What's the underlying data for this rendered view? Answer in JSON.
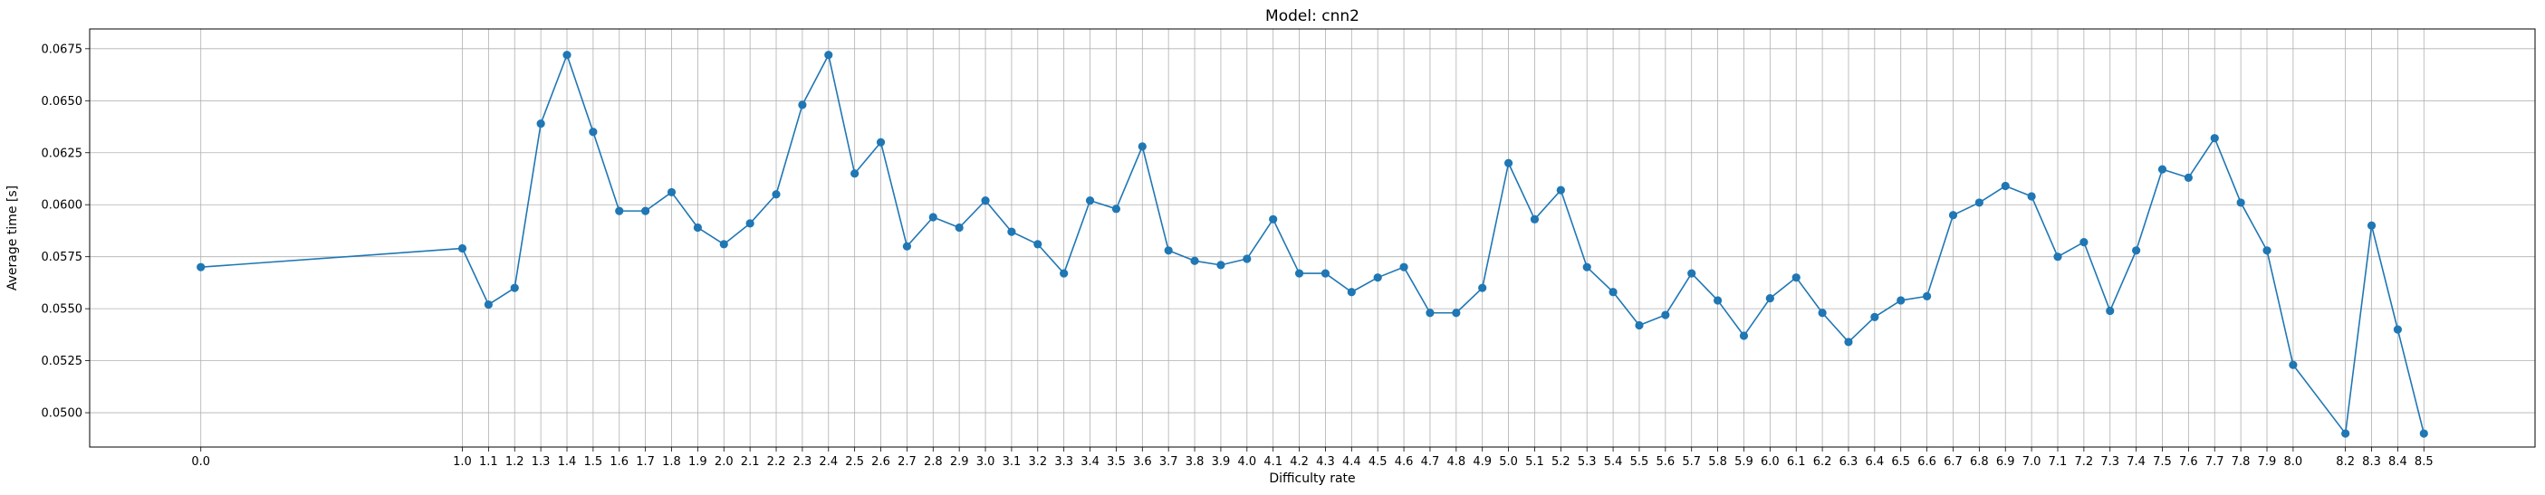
{
  "chart_data": {
    "type": "line",
    "title": "Model: cnn2",
    "xlabel": "Difficulty rate",
    "ylabel": "Average time [s]",
    "xlim": [
      -0.425,
      8.925
    ],
    "ylim": [
      0.04835,
      0.06845
    ],
    "grid": true,
    "yticks": [
      0.05,
      0.0525,
      0.055,
      0.0575,
      0.06,
      0.0625,
      0.065,
      0.0675
    ],
    "ytick_labels": [
      "0.0500",
      "0.0525",
      "0.0550",
      "0.0575",
      "0.0600",
      "0.0625",
      "0.0650",
      "0.0675"
    ],
    "line_color": "#1f77b4",
    "x": [
      0.0,
      1.0,
      1.1,
      1.2,
      1.3,
      1.4,
      1.5,
      1.6,
      1.7,
      1.8,
      1.9,
      2.0,
      2.1,
      2.2,
      2.3,
      2.4,
      2.5,
      2.6,
      2.7,
      2.8,
      2.9,
      3.0,
      3.1,
      3.2,
      3.3,
      3.4,
      3.5,
      3.6,
      3.7,
      3.8,
      3.9,
      4.0,
      4.1,
      4.2,
      4.3,
      4.4,
      4.5,
      4.6,
      4.7,
      4.8,
      4.9,
      5.0,
      5.1,
      5.2,
      5.3,
      5.4,
      5.5,
      5.6,
      5.7,
      5.8,
      5.9,
      6.0,
      6.1,
      6.2,
      6.3,
      6.4,
      6.5,
      6.6,
      6.7,
      6.8,
      6.9,
      7.0,
      7.1,
      7.2,
      7.3,
      7.4,
      7.5,
      7.6,
      7.7,
      7.8,
      7.9,
      8.0,
      8.2,
      8.3,
      8.4,
      8.5
    ],
    "xtick_labels": [
      "0.0",
      "1.0",
      "1.1",
      "1.2",
      "1.3",
      "1.4",
      "1.5",
      "1.6",
      "1.7",
      "1.8",
      "1.9",
      "2.0",
      "2.1",
      "2.2",
      "2.3",
      "2.4",
      "2.5",
      "2.6",
      "2.7",
      "2.8",
      "2.9",
      "3.0",
      "3.1",
      "3.2",
      "3.3",
      "3.4",
      "3.5",
      "3.6",
      "3.7",
      "3.8",
      "3.9",
      "4.0",
      "4.1",
      "4.2",
      "4.3",
      "4.4",
      "4.5",
      "4.6",
      "4.7",
      "4.8",
      "4.9",
      "5.0",
      "5.1",
      "5.2",
      "5.3",
      "5.4",
      "5.5",
      "5.6",
      "5.7",
      "5.8",
      "5.9",
      "6.0",
      "6.1",
      "6.2",
      "6.3",
      "6.4",
      "6.5",
      "6.6",
      "6.7",
      "6.8",
      "6.9",
      "7.0",
      "7.1",
      "7.2",
      "7.3",
      "7.4",
      "7.5",
      "7.6",
      "7.7",
      "7.8",
      "7.9",
      "8.0",
      "8.2",
      "8.3",
      "8.4",
      "8.5"
    ],
    "y": [
      0.057,
      0.0579,
      0.0552,
      0.056,
      0.0639,
      0.0672,
      0.0635,
      0.0597,
      0.0597,
      0.0606,
      0.0589,
      0.0581,
      0.0591,
      0.0605,
      0.0648,
      0.0672,
      0.0615,
      0.063,
      0.058,
      0.0594,
      0.0589,
      0.0602,
      0.0587,
      0.0581,
      0.0567,
      0.0602,
      0.0598,
      0.0628,
      0.0578,
      0.0573,
      0.0571,
      0.0574,
      0.0593,
      0.0567,
      0.0567,
      0.0558,
      0.0565,
      0.057,
      0.0548,
      0.0548,
      0.056,
      0.062,
      0.0593,
      0.0607,
      0.057,
      0.0558,
      0.0542,
      0.0547,
      0.0567,
      0.0554,
      0.0537,
      0.0555,
      0.0565,
      0.0548,
      0.0534,
      0.0546,
      0.0554,
      0.0556,
      0.0595,
      0.0601,
      0.0609,
      0.0604,
      0.0575,
      0.0582,
      0.0549,
      0.0578,
      0.0617,
      0.0613,
      0.0632,
      0.0601,
      0.0578,
      0.0523,
      0.049,
      0.059,
      0.054,
      0.049
    ]
  }
}
